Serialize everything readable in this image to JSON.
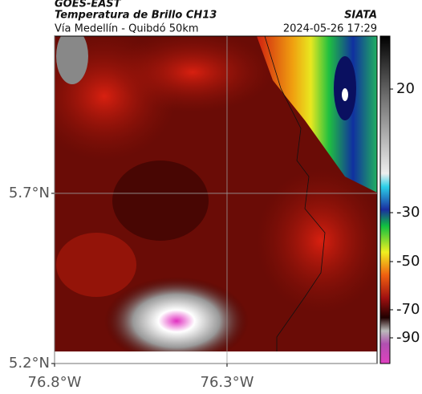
{
  "header": {
    "source": "GOES-EAST",
    "title": "Temperatura de Brillo CH13",
    "subtitle": "Vía Medellín - Quibdó 50km",
    "brand": "SIATA",
    "datetime": "2024-05-26 17:29"
  },
  "map": {
    "extent": {
      "lon": [
        -76.8,
        -75.865
      ],
      "lat": [
        5.2,
        6.162
      ]
    },
    "lat_ticks": [
      {
        "value": 5.7,
        "label": "5.7°N"
      },
      {
        "value": 5.2,
        "label": "5.2°N"
      }
    ],
    "lon_ticks": [
      {
        "value": -76.8,
        "label": "76.8°W"
      },
      {
        "value": -76.3,
        "label": "76.3°W"
      }
    ],
    "grid": true
  },
  "colorbar": {
    "ticks": [
      20,
      -30,
      -50,
      -70,
      -90
    ]
  }
}
